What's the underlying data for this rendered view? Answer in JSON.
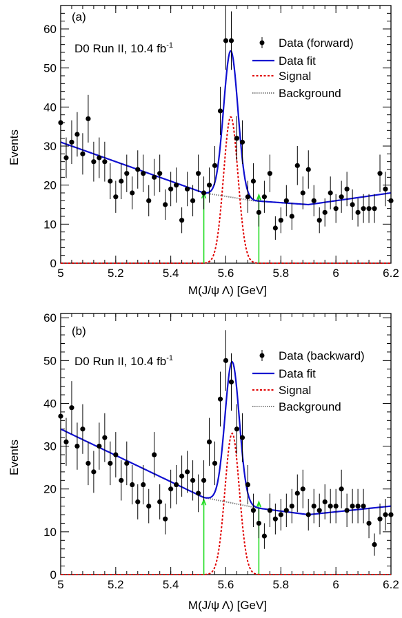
{
  "chart_data": [
    {
      "type": "scatter",
      "panel_label": "(a)",
      "experiment": "D0 Run II, 10.4 fb",
      "luminosity_exponent": "-1",
      "xlabel": "M(J/ψ Λ) [GeV]",
      "ylabel": "Events",
      "xlim": [
        5.0,
        6.2
      ],
      "ylim": [
        0,
        66
      ],
      "xticks": [
        5,
        5.2,
        5.4,
        5.6,
        5.8,
        6,
        6.2
      ],
      "xtick_labels": [
        "5",
        "5.2",
        "5.4",
        "5.6",
        "5.8",
        "6",
        "6.2"
      ],
      "yticks": [
        0,
        10,
        20,
        30,
        40,
        50,
        60
      ],
      "ytick_labels": [
        "0",
        "10",
        "20",
        "30",
        "40",
        "50",
        "60"
      ],
      "legend_position": "top-right",
      "legend": [
        {
          "label": "Data (forward)",
          "style": "marker",
          "color": "#000000"
        },
        {
          "label": "Data fit",
          "style": "solid",
          "color": "#1010d0"
        },
        {
          "label": "Signal",
          "style": "dashed",
          "color": "#e00000"
        },
        {
          "label": "Background",
          "style": "dotted",
          "color": "#808080"
        }
      ],
      "data": {
        "x": [
          5.0,
          5.02,
          5.04,
          5.06,
          5.08,
          5.1,
          5.12,
          5.14,
          5.16,
          5.18,
          5.2,
          5.22,
          5.24,
          5.26,
          5.28,
          5.3,
          5.32,
          5.34,
          5.36,
          5.38,
          5.4,
          5.42,
          5.44,
          5.46,
          5.48,
          5.5,
          5.52,
          5.54,
          5.56,
          5.58,
          5.6,
          5.62,
          5.64,
          5.66,
          5.68,
          5.7,
          5.72,
          5.74,
          5.76,
          5.78,
          5.8,
          5.82,
          5.84,
          5.86,
          5.88,
          5.9,
          5.92,
          5.94,
          5.96,
          5.98,
          6.0,
          6.02,
          6.04,
          6.06,
          6.08,
          6.1,
          6.12,
          6.14,
          6.16,
          6.18,
          6.2
        ],
        "y": [
          36,
          27,
          31,
          33,
          28,
          37,
          26,
          27,
          26,
          21,
          17,
          21,
          23,
          18,
          24,
          23,
          16,
          22,
          23,
          15,
          19,
          20,
          11,
          19,
          16,
          23,
          18,
          20,
          25,
          39,
          57,
          57,
          32,
          31,
          17,
          21,
          13,
          17,
          23,
          9,
          11,
          16,
          12,
          25,
          18,
          24,
          16,
          11,
          13,
          18,
          14,
          17,
          19,
          15,
          13,
          14,
          14,
          14,
          23,
          19,
          16
        ],
        "yerr": [
          6.0,
          5.2,
          5.6,
          5.7,
          5.3,
          6.1,
          5.1,
          5.2,
          5.1,
          4.6,
          4.1,
          4.6,
          4.8,
          4.2,
          4.9,
          4.8,
          4.0,
          4.7,
          4.8,
          3.9,
          4.4,
          4.5,
          3.3,
          4.4,
          4.0,
          4.8,
          4.2,
          4.5,
          5.0,
          6.2,
          7.5,
          7.5,
          5.7,
          5.6,
          4.1,
          4.6,
          3.6,
          4.1,
          4.8,
          3.0,
          3.3,
          4.0,
          3.5,
          5.0,
          4.2,
          4.9,
          4.0,
          3.3,
          3.6,
          4.2,
          3.7,
          4.1,
          4.4,
          3.9,
          3.6,
          3.7,
          3.7,
          3.7,
          4.8,
          4.4,
          4.0
        ]
      },
      "fit": {
        "bkg_x": [
          5.0,
          5.52,
          5.7,
          5.9,
          6.2
        ],
        "bkg_y": [
          31,
          18,
          16,
          15,
          18
        ],
        "signal_mean": 5.618,
        "signal_sigma": 0.026,
        "signal_peak": 37.5
      },
      "window_arrows": [
        {
          "x": 5.52,
          "y_top": 18.0,
          "color": "#22dd22"
        },
        {
          "x": 5.72,
          "y_top": 17.5,
          "color": "#22dd22"
        }
      ]
    },
    {
      "type": "scatter",
      "panel_label": "(b)",
      "experiment": "D0 Run II, 10.4 fb",
      "luminosity_exponent": "-1",
      "xlabel": "M(J/ψ Λ) [GeV]",
      "ylabel": "Events",
      "xlim": [
        5.0,
        6.2
      ],
      "ylim": [
        0,
        61
      ],
      "xticks": [
        5,
        5.2,
        5.4,
        5.6,
        5.8,
        6,
        6.2
      ],
      "xtick_labels": [
        "5",
        "5.2",
        "5.4",
        "5.6",
        "5.8",
        "6",
        "6.2"
      ],
      "yticks": [
        0,
        10,
        20,
        30,
        40,
        50,
        60
      ],
      "ytick_labels": [
        "0",
        "10",
        "20",
        "30",
        "40",
        "50",
        "60"
      ],
      "legend_position": "top-right",
      "legend": [
        {
          "label": "Data (backward)",
          "style": "marker",
          "color": "#000000"
        },
        {
          "label": "Data fit",
          "style": "solid",
          "color": "#1010d0"
        },
        {
          "label": "Signal",
          "style": "dashed",
          "color": "#e00000"
        },
        {
          "label": "Background",
          "style": "dotted",
          "color": "#808080"
        }
      ],
      "data": {
        "x": [
          5.0,
          5.02,
          5.04,
          5.06,
          5.08,
          5.1,
          5.12,
          5.14,
          5.16,
          5.18,
          5.2,
          5.22,
          5.24,
          5.26,
          5.28,
          5.3,
          5.32,
          5.34,
          5.36,
          5.38,
          5.4,
          5.42,
          5.44,
          5.46,
          5.48,
          5.5,
          5.52,
          5.54,
          5.56,
          5.58,
          5.6,
          5.62,
          5.64,
          5.66,
          5.68,
          5.7,
          5.72,
          5.74,
          5.76,
          5.78,
          5.8,
          5.82,
          5.84,
          5.86,
          5.88,
          5.9,
          5.92,
          5.94,
          5.96,
          5.98,
          6.0,
          6.02,
          6.04,
          6.06,
          6.08,
          6.1,
          6.12,
          6.14,
          6.16,
          6.18,
          6.2
        ],
        "y": [
          37,
          31,
          39,
          30,
          34,
          26,
          24,
          30,
          32,
          26,
          28,
          22,
          26,
          21,
          17,
          21,
          16,
          28,
          17,
          13,
          20,
          21,
          23,
          24,
          22,
          19,
          22,
          31,
          26,
          41,
          50,
          45,
          34,
          32,
          21,
          15,
          12,
          9,
          15,
          13,
          14,
          15,
          16,
          19,
          20,
          14,
          16,
          15,
          17,
          16,
          16,
          20,
          15,
          16,
          16,
          16,
          12,
          7,
          13,
          14,
          14
        ],
        "yerr": [
          6.1,
          5.6,
          6.2,
          5.5,
          5.8,
          5.1,
          4.9,
          5.5,
          5.7,
          5.1,
          5.3,
          4.7,
          5.1,
          4.6,
          4.1,
          4.6,
          4.0,
          5.3,
          4.1,
          3.6,
          4.5,
          4.6,
          4.8,
          4.9,
          4.7,
          4.4,
          4.7,
          5.6,
          5.1,
          6.4,
          7.1,
          6.7,
          5.8,
          5.7,
          4.6,
          3.9,
          3.5,
          3.0,
          3.9,
          3.6,
          3.7,
          3.9,
          4.0,
          4.4,
          4.5,
          3.7,
          4.0,
          3.9,
          4.1,
          4.0,
          4.0,
          4.5,
          3.9,
          4.0,
          4.0,
          4.0,
          3.5,
          2.6,
          3.6,
          3.7,
          3.7
        ]
      },
      "fit": {
        "bkg_x": [
          5.0,
          5.52,
          5.72,
          5.9,
          6.2
        ],
        "bkg_y": [
          34,
          18,
          15.5,
          14,
          16
        ],
        "signal_mean": 5.623,
        "signal_sigma": 0.026,
        "signal_peak": 33
      },
      "window_arrows": [
        {
          "x": 5.52,
          "y_top": 17.5,
          "color": "#22dd22"
        },
        {
          "x": 5.72,
          "y_top": 17.0,
          "color": "#22dd22"
        }
      ]
    }
  ]
}
